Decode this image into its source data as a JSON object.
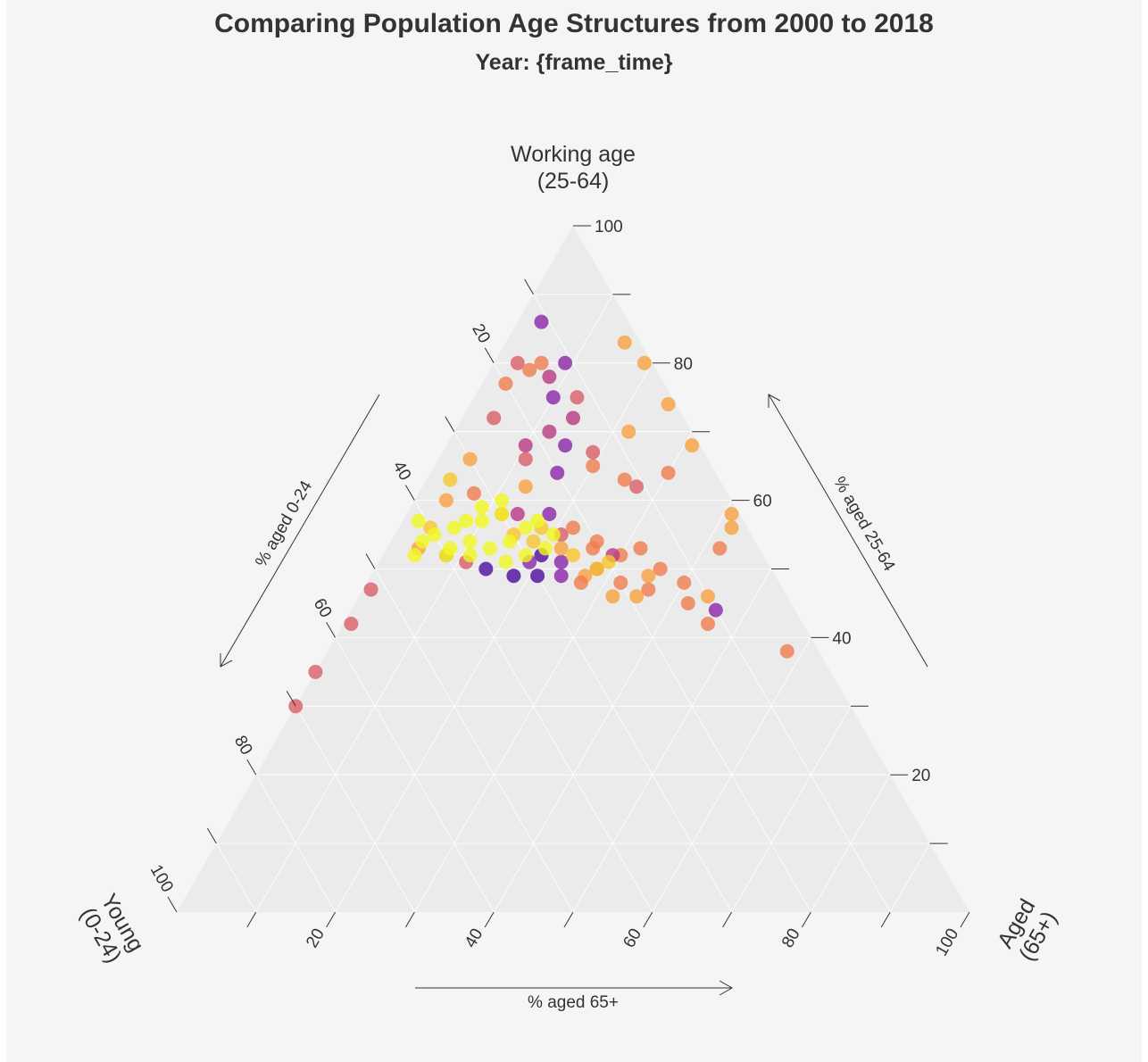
{
  "title": "Comparing Population Age Structures from 2000 to 2018",
  "subtitle": "Year: {frame_time}",
  "chart_data": {
    "type": "scatter",
    "subtype": "ternary",
    "title": "Comparing Population Age Structures from 2000 to 2018",
    "subtitle": "Year: {frame_time}",
    "corners": {
      "top": [
        "Working age",
        "(25-64)"
      ],
      "left": [
        "Young",
        "(0-24)"
      ],
      "right": [
        "Aged",
        "(65+)"
      ]
    },
    "axis_labels": {
      "young": "% aged 0-24",
      "working": "% aged 25-64",
      "aged": "% aged 65+"
    },
    "ticks": {
      "young": [
        "20",
        "40",
        "60",
        "80",
        "100"
      ],
      "working": [
        "20",
        "40",
        "60",
        "80",
        "100"
      ],
      "aged": [
        "20",
        "40",
        "60",
        "80",
        "100"
      ]
    },
    "grid": true,
    "range": [
      0,
      100
    ],
    "palette": [
      "#4b0c9b",
      "#8a26a7",
      "#b93a83",
      "#d95e69",
      "#ef7d4e",
      "#f8a23f",
      "#f8c62c",
      "#f0f921"
    ],
    "points": [
      {
        "young": 11,
        "working": 86,
        "aged": 3,
        "color": "#8a26a7"
      },
      {
        "young": 17,
        "working": 80,
        "aged": 3,
        "color": "#d95e69"
      },
      {
        "young": 20,
        "working": 77,
        "aged": 3,
        "color": "#ef7d4e"
      },
      {
        "young": 24,
        "working": 72,
        "aged": 4,
        "color": "#d95e69"
      },
      {
        "young": 30,
        "working": 66,
        "aged": 4,
        "color": "#f8a23f"
      },
      {
        "young": 34,
        "working": 63,
        "aged": 3,
        "color": "#f8c62c"
      },
      {
        "young": 52,
        "working": 47,
        "aged": 1,
        "color": "#d95e69"
      },
      {
        "young": 57,
        "working": 42,
        "aged": 1,
        "color": "#d95e69"
      },
      {
        "young": 65,
        "working": 35,
        "aged": 0,
        "color": "#d95e69"
      },
      {
        "young": 70,
        "working": 30,
        "aged": 0,
        "color": "#d95e69"
      },
      {
        "young": 14,
        "working": 80,
        "aged": 6,
        "color": "#ef7d4e"
      },
      {
        "young": 16,
        "working": 79,
        "aged": 5,
        "color": "#ef7d4e"
      },
      {
        "young": 11,
        "working": 80,
        "aged": 9,
        "color": "#8a26a7"
      },
      {
        "young": 14,
        "working": 78,
        "aged": 8,
        "color": "#b93a83"
      },
      {
        "young": 15,
        "working": 75,
        "aged": 10,
        "color": "#8a26a7"
      },
      {
        "young": 12,
        "working": 75,
        "aged": 13,
        "color": "#d95e69"
      },
      {
        "young": 14,
        "working": 72,
        "aged": 14,
        "color": "#b93a83"
      },
      {
        "young": 18,
        "working": 70,
        "aged": 12,
        "color": "#b93a83"
      },
      {
        "young": 17,
        "working": 68,
        "aged": 15,
        "color": "#8a26a7"
      },
      {
        "young": 22,
        "working": 68,
        "aged": 10,
        "color": "#b93a83"
      },
      {
        "young": 15,
        "working": 65,
        "aged": 20,
        "color": "#ef7d4e"
      },
      {
        "young": 14,
        "working": 67,
        "aged": 19,
        "color": "#d95e69"
      },
      {
        "young": 20,
        "working": 64,
        "aged": 16,
        "color": "#8a26a7"
      },
      {
        "young": 23,
        "working": 66,
        "aged": 11,
        "color": "#d95e69"
      },
      {
        "young": 25,
        "working": 62,
        "aged": 13,
        "color": "#f8a23f"
      },
      {
        "young": 8,
        "working": 70,
        "aged": 22,
        "color": "#f8a23f"
      },
      {
        "young": 12,
        "working": 63,
        "aged": 25,
        "color": "#ef7d4e"
      },
      {
        "young": 11,
        "working": 62,
        "aged": 27,
        "color": "#d95e69"
      },
      {
        "young": 6,
        "working": 64,
        "aged": 30,
        "color": "#ef7d4e"
      },
      {
        "young": 2,
        "working": 83,
        "aged": 15,
        "color": "#f8a23f"
      },
      {
        "young": 1,
        "working": 80,
        "aged": 19,
        "color": "#f8a23f"
      },
      {
        "young": 1,
        "working": 74,
        "aged": 25,
        "color": "#f8a23f"
      },
      {
        "young": 1,
        "working": 68,
        "aged": 31,
        "color": "#f8a23f"
      },
      {
        "young": 1,
        "working": 58,
        "aged": 41,
        "color": "#f8a23f"
      },
      {
        "young": 2,
        "working": 56,
        "aged": 42,
        "color": "#f8a23f"
      },
      {
        "young": 5,
        "working": 53,
        "aged": 42,
        "color": "#ef7d4e"
      },
      {
        "young": 24,
        "working": 58,
        "aged": 18,
        "color": "#8a26a7"
      },
      {
        "young": 28,
        "working": 58,
        "aged": 14,
        "color": "#b93a83"
      },
      {
        "young": 24,
        "working": 55,
        "aged": 21,
        "color": "#d95e69"
      },
      {
        "young": 20,
        "working": 54,
        "aged": 26,
        "color": "#ef7d4e"
      },
      {
        "young": 18,
        "working": 52,
        "aged": 30,
        "color": "#ef7d4e"
      },
      {
        "young": 15,
        "working": 53,
        "aged": 32,
        "color": "#ef7d4e"
      },
      {
        "young": 26,
        "working": 51,
        "aged": 23,
        "color": "#8a26a7"
      },
      {
        "young": 28,
        "working": 52,
        "aged": 20,
        "color": "#4b0c9b"
      },
      {
        "young": 30,
        "working": 51,
        "aged": 19,
        "color": "#8a26a7"
      },
      {
        "young": 22,
        "working": 50,
        "aged": 28,
        "color": "#d95e69"
      },
      {
        "young": 20,
        "working": 48,
        "aged": 32,
        "color": "#ef7d4e"
      },
      {
        "young": 16,
        "working": 49,
        "aged": 35,
        "color": "#f8a23f"
      },
      {
        "young": 14,
        "working": 50,
        "aged": 36,
        "color": "#ef7d4e"
      },
      {
        "young": 12,
        "working": 48,
        "aged": 40,
        "color": "#ef7d4e"
      },
      {
        "young": 13,
        "working": 45,
        "aged": 42,
        "color": "#ef7d4e"
      },
      {
        "young": 10,
        "working": 46,
        "aged": 44,
        "color": "#f8a23f"
      },
      {
        "young": 10,
        "working": 44,
        "aged": 46,
        "color": "#8a26a7"
      },
      {
        "young": 12,
        "working": 42,
        "aged": 46,
        "color": "#ef7d4e"
      },
      {
        "young": 4,
        "working": 38,
        "aged": 58,
        "color": "#ef7d4e"
      },
      {
        "young": 24,
        "working": 49,
        "aged": 27,
        "color": "#f8a23f"
      },
      {
        "young": 25,
        "working": 48,
        "aged": 27,
        "color": "#ef7d4e"
      },
      {
        "young": 22,
        "working": 46,
        "aged": 32,
        "color": "#f8a23f"
      },
      {
        "young": 19,
        "working": 46,
        "aged": 35,
        "color": "#f8a23f"
      },
      {
        "young": 17,
        "working": 47,
        "aged": 36,
        "color": "#ef7d4e"
      },
      {
        "young": 27,
        "working": 49,
        "aged": 24,
        "color": "#8a26a7"
      },
      {
        "young": 30,
        "working": 49,
        "aged": 21,
        "color": "#4b0c9b"
      },
      {
        "young": 33,
        "working": 49,
        "aged": 18,
        "color": "#4b0c9b"
      },
      {
        "young": 36,
        "working": 50,
        "aged": 14,
        "color": "#4b0c9b"
      },
      {
        "young": 38,
        "working": 51,
        "aged": 11,
        "color": "#d95e69"
      },
      {
        "young": 40,
        "working": 52,
        "aged": 8,
        "color": "#d95e69"
      },
      {
        "young": 43,
        "working": 53,
        "aged": 4,
        "color": "#f8a23f"
      },
      {
        "young": 40,
        "working": 56,
        "aged": 4,
        "color": "#f8c62c"
      },
      {
        "young": 36,
        "working": 60,
        "aged": 4,
        "color": "#f8a23f"
      },
      {
        "young": 32,
        "working": 61,
        "aged": 7,
        "color": "#ef7d4e"
      },
      {
        "young": 30,
        "working": 58,
        "aged": 12,
        "color": "#ef7d4e"
      },
      {
        "young": 22,
        "working": 56,
        "aged": 22,
        "color": "#ef7d4e"
      },
      {
        "young": 19,
        "working": 52,
        "aged": 29,
        "color": "#b93a83"
      },
      {
        "young": 21,
        "working": 53,
        "aged": 26,
        "color": "#ef7d4e"
      },
      {
        "young": 25,
        "working": 53,
        "aged": 22,
        "color": "#f8a23f"
      },
      {
        "young": 28,
        "working": 54,
        "aged": 18,
        "color": "#f8c62c"
      },
      {
        "young": 30,
        "working": 55,
        "aged": 15,
        "color": "#f8c62c"
      },
      {
        "young": 26,
        "working": 56,
        "aged": 18,
        "color": "#f8c62c"
      },
      {
        "young": 24,
        "working": 52,
        "aged": 24,
        "color": "#f8c62c"
      },
      {
        "young": 22,
        "working": 50,
        "aged": 28,
        "color": "#f8c62c"
      },
      {
        "young": 20,
        "working": 51,
        "aged": 29,
        "color": "#f8c62c"
      },
      {
        "young": 35,
        "working": 57,
        "aged": 8,
        "color": "#f0f921"
      },
      {
        "young": 37,
        "working": 56,
        "aged": 7,
        "color": "#f0f921"
      },
      {
        "young": 40,
        "working": 55,
        "aged": 5,
        "color": "#f0f921"
      },
      {
        "young": 42,
        "working": 54,
        "aged": 4,
        "color": "#f0f921"
      },
      {
        "young": 44,
        "working": 52,
        "aged": 4,
        "color": "#f0f921"
      },
      {
        "young": 40,
        "working": 52,
        "aged": 8,
        "color": "#f0f921"
      },
      {
        "young": 37,
        "working": 52,
        "aged": 11,
        "color": "#f0f921"
      },
      {
        "young": 34,
        "working": 53,
        "aged": 13,
        "color": "#f0f921"
      },
      {
        "young": 31,
        "working": 54,
        "aged": 15,
        "color": "#f0f921"
      },
      {
        "young": 28,
        "working": 56,
        "aged": 16,
        "color": "#f0f921"
      },
      {
        "young": 26,
        "working": 57,
        "aged": 17,
        "color": "#f0f921"
      },
      {
        "young": 30,
        "working": 58,
        "aged": 12,
        "color": "#f0f921"
      },
      {
        "young": 33,
        "working": 57,
        "aged": 10,
        "color": "#f0f921"
      },
      {
        "young": 36,
        "working": 54,
        "aged": 10,
        "color": "#f0f921"
      },
      {
        "young": 39,
        "working": 53,
        "aged": 8,
        "color": "#f0f921"
      },
      {
        "young": 33,
        "working": 51,
        "aged": 16,
        "color": "#f0f921"
      },
      {
        "young": 30,
        "working": 52,
        "aged": 18,
        "color": "#f0f921"
      },
      {
        "young": 27,
        "working": 53,
        "aged": 20,
        "color": "#f0f921"
      },
      {
        "young": 25,
        "working": 55,
        "aged": 20,
        "color": "#f0f921"
      },
      {
        "young": 29,
        "working": 60,
        "aged": 11,
        "color": "#f0f921"
      },
      {
        "young": 32,
        "working": 59,
        "aged": 9,
        "color": "#f0f921"
      },
      {
        "young": 41,
        "working": 57,
        "aged": 2,
        "color": "#f0f921"
      }
    ]
  }
}
